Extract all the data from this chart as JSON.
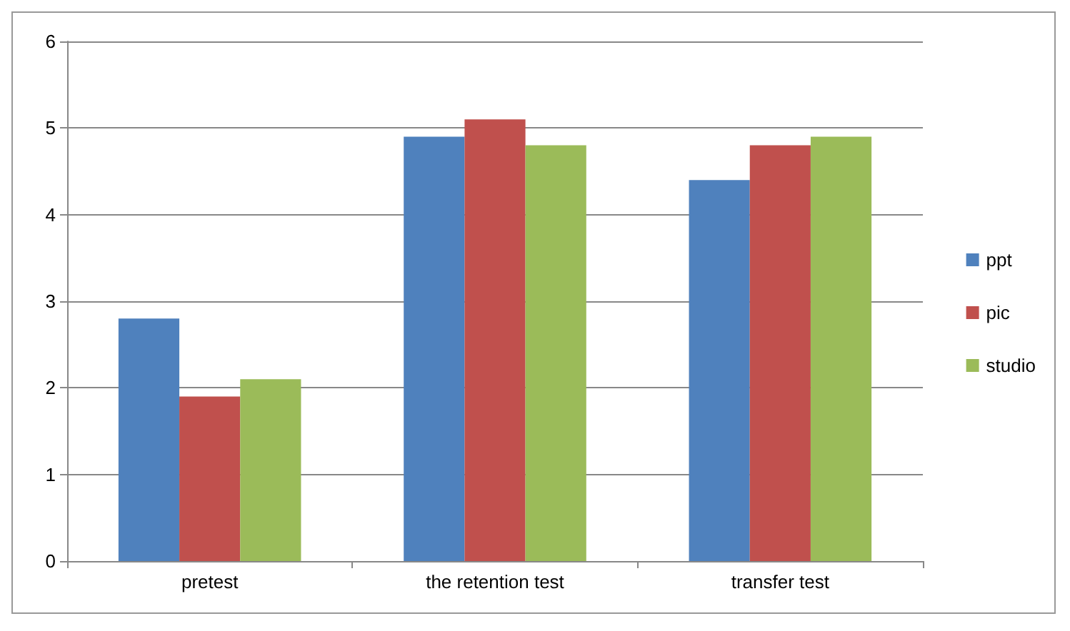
{
  "chart_data": {
    "type": "bar",
    "categories": [
      "pretest",
      "the retention test",
      "transfer test"
    ],
    "series": [
      {
        "name": "ppt",
        "color": "#4f81bd",
        "values": [
          2.8,
          4.9,
          4.4
        ]
      },
      {
        "name": "pic",
        "color": "#c0504d",
        "values": [
          1.9,
          5.1,
          4.8
        ]
      },
      {
        "name": "studio",
        "color": "#9bbb59",
        "values": [
          2.1,
          4.8,
          4.9
        ]
      }
    ],
    "ylim": [
      0,
      6
    ],
    "yticks": [
      0,
      1,
      2,
      3,
      4,
      5,
      6
    ],
    "grid": "y",
    "legend": "right"
  }
}
